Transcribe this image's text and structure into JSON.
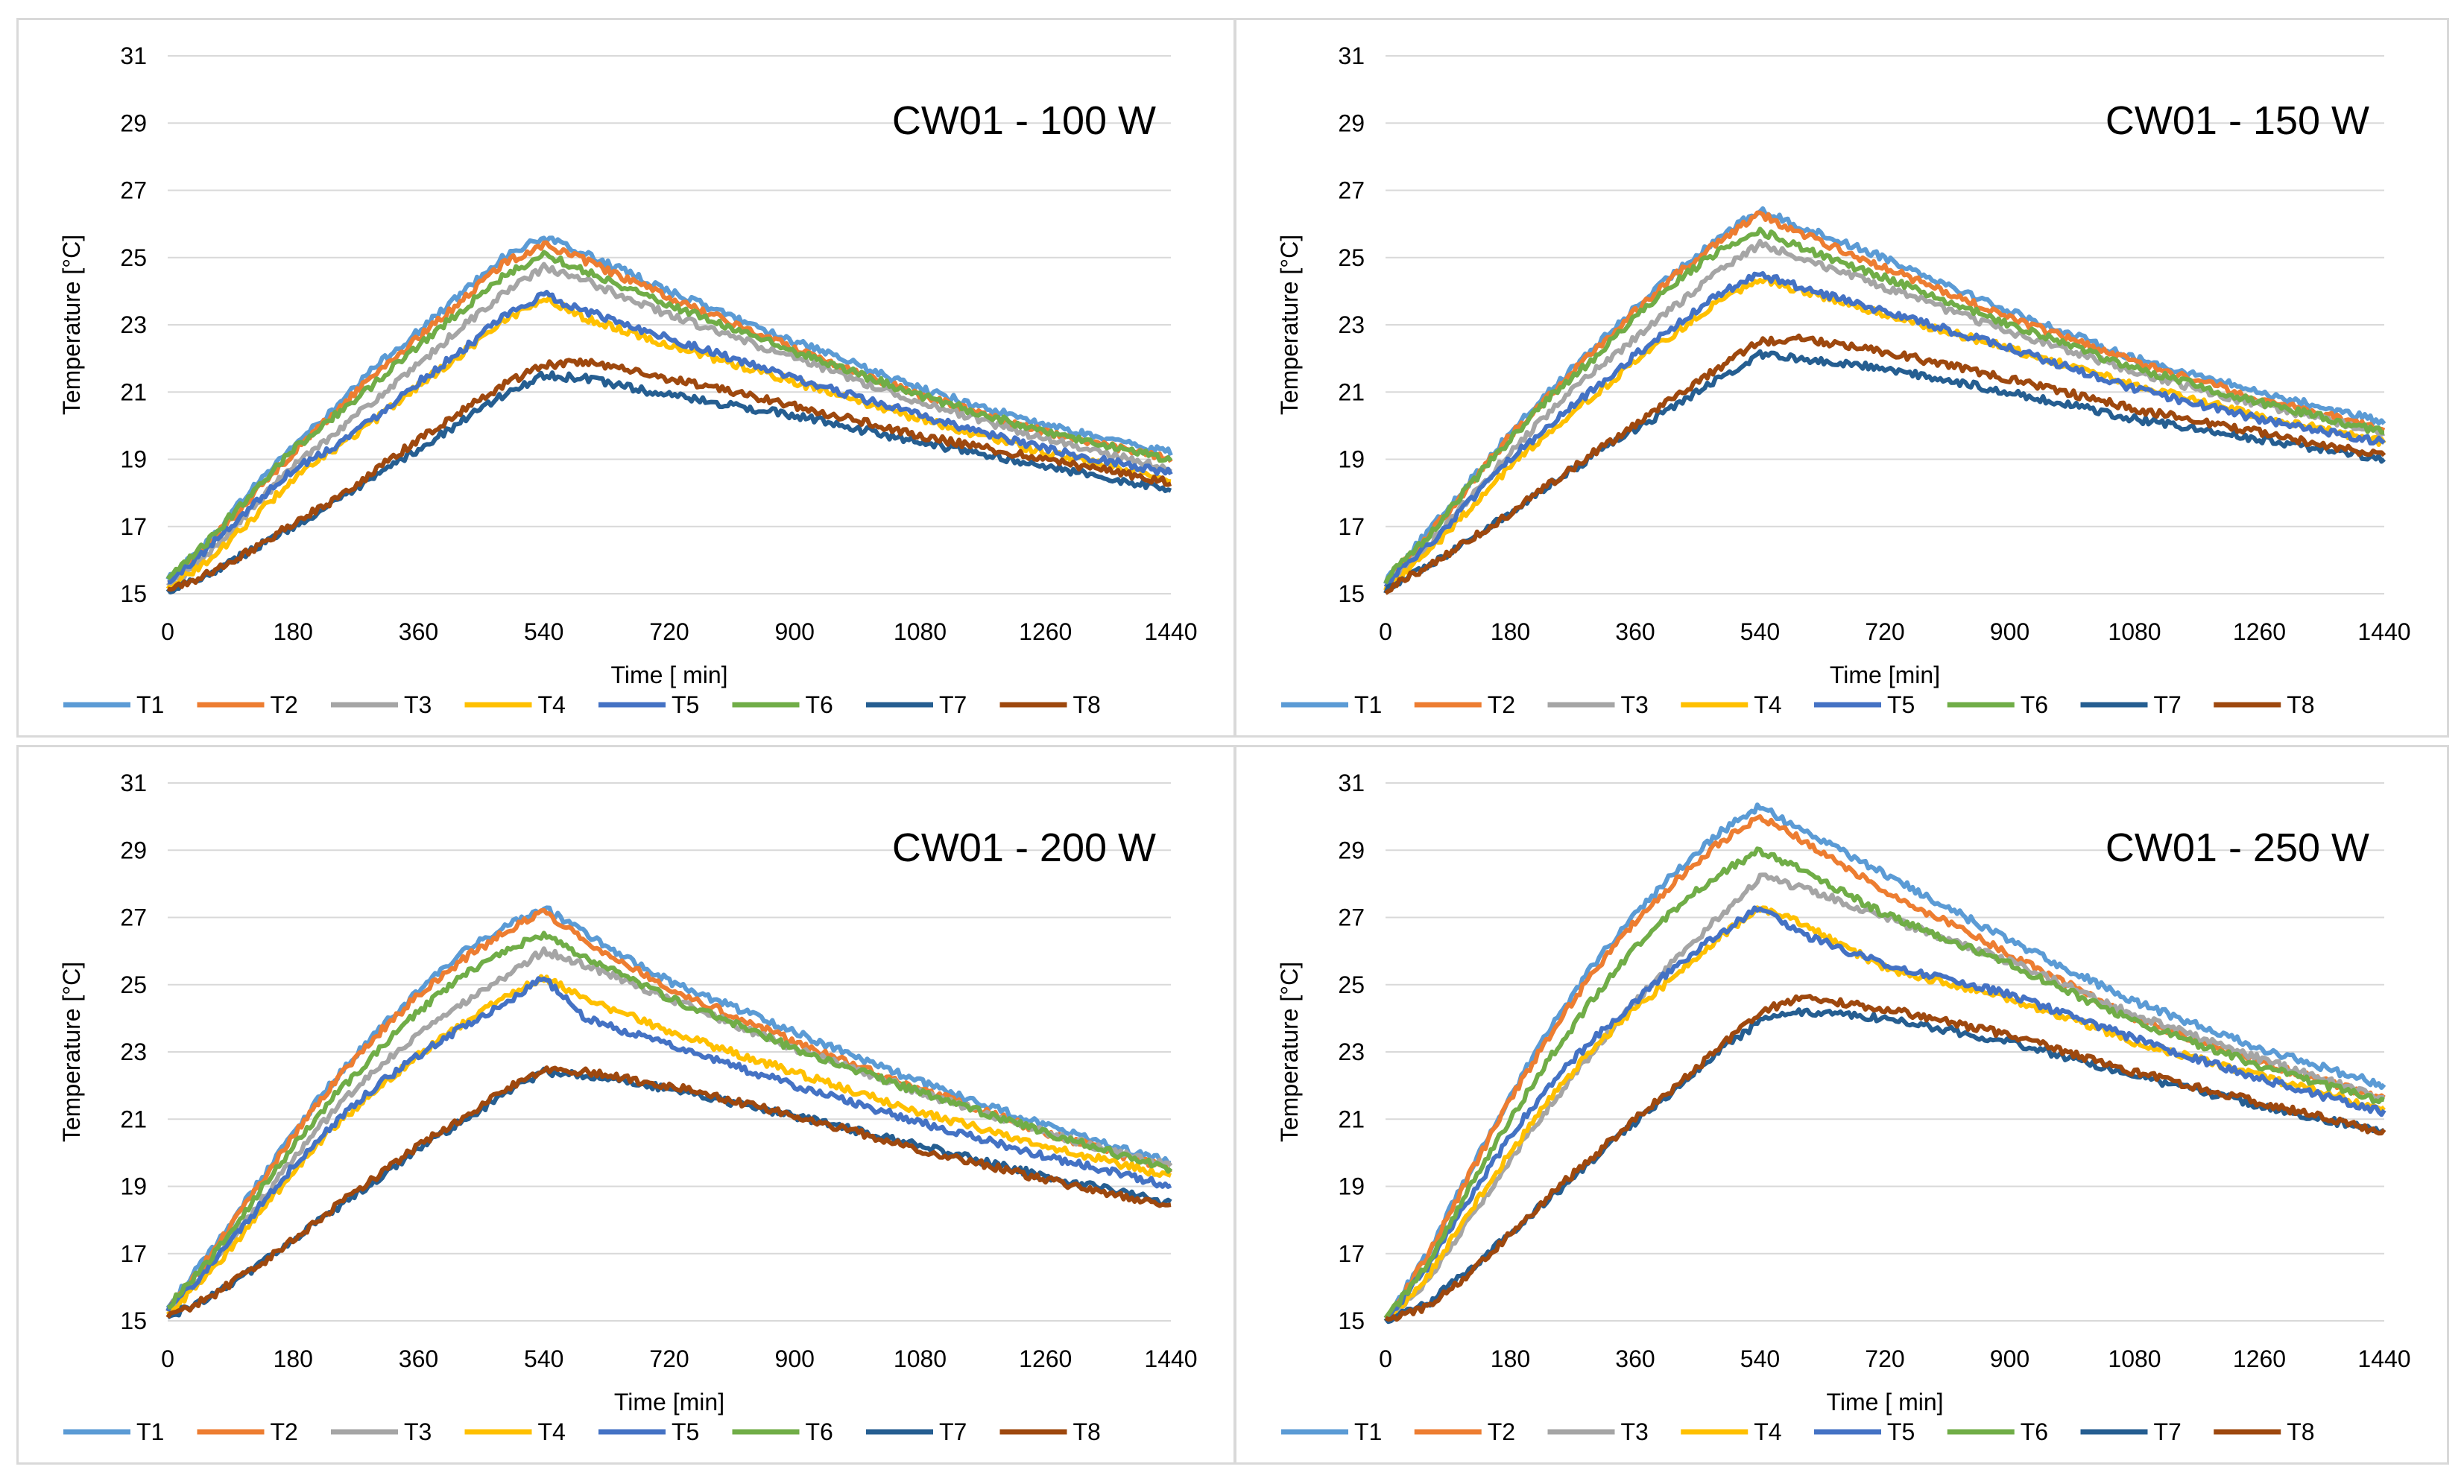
{
  "chart_data": [
    {
      "type": "line",
      "title": "CW01 - 100 W",
      "xlabel": "Time [ min]",
      "ylabel": "Temperature [°C]",
      "xlim": [
        0,
        1440
      ],
      "ylim": [
        15,
        31
      ],
      "xticks": [
        "0",
        "180",
        "360",
        "540",
        "720",
        "900",
        "1080",
        "1260",
        "1440"
      ],
      "yticks": [
        "15",
        "17",
        "19",
        "21",
        "23",
        "25",
        "27",
        "29",
        "31"
      ],
      "grid": true,
      "legend_position": "bottom",
      "x": [
        0,
        60,
        120,
        180,
        240,
        300,
        360,
        420,
        480,
        540,
        600,
        720,
        900,
        1080,
        1260,
        1440
      ],
      "series": [
        {
          "name": "T1",
          "color": "#5B9BD5",
          "values": [
            15.4,
            16.6,
            18.1,
            19.4,
            20.5,
            21.8,
            22.8,
            23.9,
            25.0,
            25.6,
            25.1,
            24.0,
            22.5,
            21.1,
            20.0,
            19.2
          ]
        },
        {
          "name": "T2",
          "color": "#ED7D31",
          "values": [
            15.3,
            16.5,
            17.9,
            19.2,
            20.4,
            21.6,
            22.6,
            23.7,
            24.8,
            25.4,
            24.9,
            23.8,
            22.3,
            20.9,
            19.8,
            19.0
          ]
        },
        {
          "name": "T3",
          "color": "#A5A5A5",
          "values": [
            15.2,
            16.2,
            17.5,
            18.8,
            19.8,
            20.8,
            21.8,
            22.9,
            23.9,
            24.7,
            24.3,
            23.3,
            22.0,
            20.7,
            19.6,
            18.7
          ]
        },
        {
          "name": "T4",
          "color": "#FFC000",
          "values": [
            15.2,
            16.0,
            17.2,
            18.4,
            19.3,
            20.2,
            21.2,
            22.1,
            23.1,
            23.8,
            23.2,
            22.4,
            21.3,
            20.2,
            19.2,
            18.4
          ]
        },
        {
          "name": "T5",
          "color": "#4472C4",
          "values": [
            15.3,
            16.4,
            17.6,
            18.7,
            19.4,
            20.3,
            21.3,
            22.2,
            23.2,
            23.9,
            23.4,
            22.6,
            21.4,
            20.3,
            19.3,
            18.6
          ]
        },
        {
          "name": "T6",
          "color": "#70AD47",
          "values": [
            15.4,
            16.6,
            18.0,
            19.3,
            20.3,
            21.3,
            22.4,
            23.4,
            24.4,
            25.1,
            24.6,
            23.6,
            22.2,
            20.9,
            19.8,
            19.0
          ]
        },
        {
          "name": "T7",
          "color": "#255E91",
          "values": [
            15.1,
            15.6,
            16.3,
            17.0,
            17.7,
            18.5,
            19.3,
            20.1,
            20.9,
            21.5,
            21.4,
            20.9,
            20.3,
            19.5,
            18.8,
            18.1
          ]
        },
        {
          "name": "T8",
          "color": "#9E480E",
          "values": [
            15.1,
            15.6,
            16.3,
            17.1,
            17.8,
            18.7,
            19.6,
            20.4,
            21.2,
            21.8,
            21.9,
            21.4,
            20.6,
            19.7,
            19.0,
            18.3
          ]
        }
      ]
    },
    {
      "type": "line",
      "title": "CW01 - 150 W",
      "xlabel": "Time [min]",
      "ylabel": "Temperature [°C]",
      "xlim": [
        0,
        1440
      ],
      "ylim": [
        15,
        31
      ],
      "xticks": [
        "0",
        "180",
        "360",
        "540",
        "720",
        "900",
        "1080",
        "1260",
        "1440"
      ],
      "yticks": [
        "15",
        "17",
        "19",
        "21",
        "23",
        "25",
        "27",
        "29",
        "31"
      ],
      "grid": true,
      "legend_position": "bottom",
      "x": [
        0,
        60,
        120,
        180,
        240,
        300,
        360,
        420,
        480,
        540,
        600,
        720,
        900,
        1080,
        1260,
        1440
      ],
      "series": [
        {
          "name": "T1",
          "color": "#5B9BD5",
          "values": [
            15.4,
            16.8,
            18.3,
            19.8,
            21.1,
            22.3,
            23.5,
            24.6,
            25.6,
            26.4,
            25.9,
            25.0,
            23.4,
            22.0,
            21.0,
            20.1
          ]
        },
        {
          "name": "T2",
          "color": "#ED7D31",
          "values": [
            15.3,
            16.7,
            18.2,
            19.7,
            21.0,
            22.2,
            23.4,
            24.5,
            25.5,
            26.3,
            25.7,
            24.7,
            23.2,
            21.9,
            20.8,
            19.9
          ]
        },
        {
          "name": "T3",
          "color": "#A5A5A5",
          "values": [
            15.2,
            16.4,
            17.8,
            19.2,
            20.5,
            21.6,
            22.6,
            23.6,
            24.6,
            25.4,
            25.0,
            24.1,
            22.8,
            21.6,
            20.6,
            19.8
          ]
        },
        {
          "name": "T4",
          "color": "#FFC000",
          "values": [
            15.2,
            16.2,
            17.5,
            18.8,
            19.9,
            20.9,
            21.9,
            22.8,
            23.7,
            24.4,
            24.0,
            23.3,
            22.3,
            21.2,
            20.3,
            19.5
          ]
        },
        {
          "name": "T5",
          "color": "#4472C4",
          "values": [
            15.3,
            16.4,
            17.7,
            19.0,
            20.1,
            21.1,
            22.1,
            23.0,
            23.9,
            24.5,
            24.1,
            23.4,
            22.3,
            21.1,
            20.2,
            19.5
          ]
        },
        {
          "name": "T6",
          "color": "#70AD47",
          "values": [
            15.4,
            16.7,
            18.2,
            19.6,
            20.9,
            22.0,
            23.2,
            24.3,
            25.2,
            25.8,
            25.3,
            24.4,
            23.0,
            21.7,
            20.7,
            19.8
          ]
        },
        {
          "name": "T7",
          "color": "#255E91",
          "values": [
            15.1,
            15.8,
            16.6,
            17.4,
            18.3,
            19.1,
            19.9,
            20.6,
            21.4,
            22.1,
            22.0,
            21.7,
            21.0,
            20.2,
            19.6,
            19.0
          ]
        },
        {
          "name": "T8",
          "color": "#9E480E",
          "values": [
            15.1,
            15.8,
            16.6,
            17.4,
            18.3,
            19.2,
            20.0,
            20.9,
            21.7,
            22.5,
            22.6,
            22.2,
            21.4,
            20.5,
            19.8,
            19.1
          ]
        }
      ]
    },
    {
      "type": "line",
      "title": "CW01 - 200 W",
      "xlabel": "Time [min]",
      "ylabel": "Temperature [°C]",
      "xlim": [
        0,
        1440
      ],
      "ylim": [
        15,
        31
      ],
      "xticks": [
        "0",
        "180",
        "360",
        "540",
        "720",
        "900",
        "1080",
        "1260",
        "1440"
      ],
      "yticks": [
        "15",
        "17",
        "19",
        "21",
        "23",
        "25",
        "27",
        "29",
        "31"
      ],
      "grid": true,
      "legend_position": "bottom",
      "x": [
        0,
        60,
        120,
        180,
        240,
        300,
        360,
        420,
        480,
        540,
        600,
        720,
        900,
        1080,
        1260,
        1440
      ],
      "series": [
        {
          "name": "T1",
          "color": "#5B9BD5",
          "values": [
            15.4,
            17.0,
            18.8,
            20.6,
            22.2,
            23.6,
            24.8,
            25.9,
            26.7,
            27.3,
            26.5,
            25.1,
            23.6,
            22.1,
            20.8,
            19.7
          ]
        },
        {
          "name": "T2",
          "color": "#ED7D31",
          "values": [
            15.3,
            16.9,
            18.7,
            20.5,
            22.1,
            23.5,
            24.7,
            25.7,
            26.5,
            27.2,
            26.3,
            24.9,
            23.3,
            21.9,
            20.6,
            19.5
          ]
        },
        {
          "name": "T3",
          "color": "#A5A5A5",
          "values": [
            15.2,
            16.6,
            18.2,
            19.8,
            21.3,
            22.5,
            23.5,
            24.4,
            25.2,
            26.0,
            25.6,
            24.6,
            23.1,
            21.8,
            20.6,
            19.6
          ]
        },
        {
          "name": "T4",
          "color": "#FFC000",
          "values": [
            15.2,
            16.4,
            17.9,
            19.4,
            20.8,
            21.9,
            22.9,
            23.8,
            24.6,
            25.2,
            24.6,
            23.6,
            22.4,
            21.2,
            20.2,
            19.3
          ]
        },
        {
          "name": "T5",
          "color": "#4472C4",
          "values": [
            15.3,
            16.6,
            18.1,
            19.6,
            20.9,
            22.0,
            22.9,
            23.7,
            24.4,
            25.2,
            24.0,
            23.2,
            22.0,
            20.9,
            19.9,
            19.0
          ]
        },
        {
          "name": "T6",
          "color": "#70AD47",
          "values": [
            15.4,
            16.8,
            18.5,
            20.2,
            21.7,
            23.0,
            24.2,
            25.2,
            26.0,
            26.5,
            25.8,
            24.6,
            23.1,
            21.8,
            20.6,
            19.5
          ]
        },
        {
          "name": "T7",
          "color": "#255E91",
          "values": [
            15.1,
            15.7,
            16.5,
            17.4,
            18.3,
            19.2,
            20.1,
            20.9,
            21.7,
            22.4,
            22.3,
            21.9,
            21.1,
            20.2,
            19.3,
            18.5
          ]
        },
        {
          "name": "T8",
          "color": "#9E480E",
          "values": [
            15.1,
            15.7,
            16.5,
            17.4,
            18.4,
            19.3,
            20.2,
            21.0,
            21.8,
            22.5,
            22.4,
            22.0,
            21.1,
            20.1,
            19.2,
            18.4
          ]
        }
      ]
    },
    {
      "type": "line",
      "title": "CW01 - 250 W",
      "xlabel": "Time [ min]",
      "ylabel": "Temperature [°C]",
      "xlim": [
        0,
        1440
      ],
      "ylim": [
        15,
        31
      ],
      "xticks": [
        "0",
        "180",
        "360",
        "540",
        "720",
        "900",
        "1080",
        "1260",
        "1440"
      ],
      "yticks": [
        "15",
        "17",
        "19",
        "21",
        "23",
        "25",
        "27",
        "29",
        "31"
      ],
      "grid": true,
      "legend_position": "bottom",
      "x": [
        0,
        60,
        120,
        180,
        240,
        300,
        360,
        420,
        480,
        540,
        600,
        720,
        900,
        1080,
        1260,
        1440
      ],
      "series": [
        {
          "name": "T1",
          "color": "#5B9BD5",
          "values": [
            15.0,
            17.0,
            19.4,
            21.7,
            23.8,
            25.6,
            27.1,
            28.4,
            29.5,
            30.3,
            29.6,
            28.3,
            26.3,
            24.5,
            23.1,
            22.0
          ]
        },
        {
          "name": "T2",
          "color": "#ED7D31",
          "values": [
            15.0,
            16.9,
            19.3,
            21.6,
            23.6,
            25.4,
            26.9,
            28.1,
            29.2,
            30.0,
            29.3,
            27.8,
            25.9,
            24.0,
            22.7,
            21.6
          ]
        },
        {
          "name": "T3",
          "color": "#A5A5A5",
          "values": [
            15.0,
            16.2,
            18.0,
            19.8,
            21.5,
            23.0,
            24.5,
            25.8,
            27.0,
            28.2,
            27.9,
            27.0,
            25.7,
            24.1,
            22.8,
            21.6
          ]
        },
        {
          "name": "T4",
          "color": "#FFC000",
          "values": [
            15.0,
            16.3,
            18.2,
            20.0,
            21.7,
            23.1,
            24.3,
            25.3,
            26.4,
            27.3,
            26.8,
            25.5,
            24.6,
            23.3,
            22.3,
            21.3
          ]
        },
        {
          "name": "T5",
          "color": "#4472C4",
          "values": [
            15.0,
            16.6,
            18.6,
            20.5,
            22.1,
            23.4,
            24.5,
            25.6,
            26.5,
            27.3,
            26.5,
            25.6,
            24.7,
            23.4,
            22.2,
            21.2
          ]
        },
        {
          "name": "T6",
          "color": "#70AD47",
          "values": [
            15.0,
            16.7,
            18.9,
            21.0,
            22.9,
            24.6,
            26.1,
            27.3,
            28.3,
            29.0,
            28.4,
            27.1,
            25.6,
            23.9,
            22.6,
            21.5
          ]
        },
        {
          "name": "T7",
          "color": "#255E91",
          "values": [
            15.0,
            15.5,
            16.5,
            17.6,
            18.7,
            19.8,
            20.9,
            21.9,
            23.0,
            23.9,
            24.2,
            24.0,
            23.3,
            22.3,
            21.4,
            20.6
          ]
        },
        {
          "name": "T8",
          "color": "#9E480E",
          "values": [
            15.0,
            15.4,
            16.4,
            17.6,
            18.8,
            19.9,
            21.0,
            22.0,
            23.1,
            24.2,
            24.6,
            24.3,
            23.5,
            22.4,
            21.5,
            20.6
          ]
        }
      ]
    }
  ]
}
